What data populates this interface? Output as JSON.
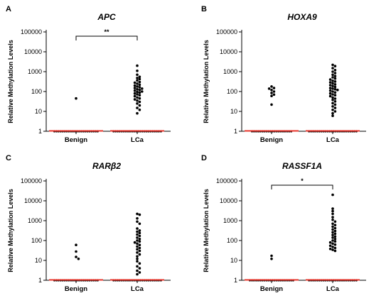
{
  "figure": {
    "ylabel": "Relative Methylation Levels"
  },
  "chart_data": [
    {
      "type": "scatter",
      "panel": "A",
      "title": "APC",
      "ylabel": "Relative Methylation Levels",
      "yscale": "log",
      "ylim": [
        1,
        100000
      ],
      "yticks": [
        "1",
        "10",
        "100",
        "1000",
        "10000",
        "100000"
      ],
      "categories": [
        "Benign",
        "LCa"
      ],
      "significance": "**",
      "bracket": [
        "Benign",
        "LCa"
      ],
      "median_color": "#e8332a",
      "groups": [
        {
          "name": "Benign",
          "values": [
            45
          ],
          "baseline_count": 22
        },
        {
          "name": "LCa",
          "values": [
            2000,
            1100,
            700,
            550,
            480,
            420,
            360,
            300,
            280,
            250,
            220,
            200,
            180,
            165,
            150,
            140,
            130,
            120,
            110,
            100,
            95,
            88,
            80,
            72,
            65,
            58,
            50,
            45,
            40,
            35,
            30,
            25,
            20,
            15,
            12,
            8
          ],
          "baseline_count": 24
        }
      ]
    },
    {
      "type": "scatter",
      "panel": "B",
      "title": "HOXA9",
      "ylabel": "Relative Methylation Levels",
      "yscale": "log",
      "ylim": [
        1,
        100000
      ],
      "yticks": [
        "1",
        "10",
        "100",
        "1000",
        "10000",
        "100000"
      ],
      "categories": [
        "Benign",
        "LCa"
      ],
      "median_color": "#e8332a",
      "groups": [
        {
          "name": "Benign",
          "values": [
            180,
            150,
            140,
            120,
            100,
            85,
            70,
            60,
            22
          ],
          "baseline_count": 20
        },
        {
          "name": "LCa",
          "values": [
            2200,
            1900,
            1500,
            1200,
            1000,
            850,
            700,
            600,
            520,
            450,
            400,
            350,
            320,
            290,
            260,
            230,
            210,
            190,
            170,
            150,
            140,
            130,
            120,
            110,
            100,
            90,
            80,
            72,
            65,
            58,
            50,
            44,
            38,
            32,
            26,
            22,
            18,
            15,
            12,
            10,
            8,
            6
          ],
          "baseline_count": 24
        }
      ]
    },
    {
      "type": "scatter",
      "panel": "C",
      "title": "RARβ2",
      "ylabel": "Relative Methylation Levels",
      "yscale": "log",
      "ylim": [
        1,
        100000
      ],
      "yticks": [
        "1",
        "10",
        "100",
        "1000",
        "10000",
        "100000"
      ],
      "categories": [
        "Benign",
        "LCa"
      ],
      "median_color": "#e8332a",
      "groups": [
        {
          "name": "Benign",
          "values": [
            60,
            28,
            15,
            12
          ],
          "baseline_count": 22
        },
        {
          "name": "LCa",
          "values": [
            2200,
            2000,
            1300,
            900,
            700,
            400,
            320,
            280,
            240,
            200,
            170,
            140,
            120,
            100,
            90,
            80,
            70,
            60,
            50,
            42,
            36,
            30,
            25,
            20,
            16,
            12,
            9,
            7,
            5,
            4,
            3,
            2.5,
            2
          ],
          "baseline_count": 24
        }
      ]
    },
    {
      "type": "scatter",
      "panel": "D",
      "title": "RASSF1A",
      "ylabel": "Relative Methylation Levels",
      "yscale": "log",
      "ylim": [
        1,
        100000
      ],
      "yticks": [
        "1",
        "10",
        "100",
        "1000",
        "10000",
        "100000"
      ],
      "categories": [
        "Benign",
        "LCa"
      ],
      "significance": "*",
      "bracket": [
        "Benign",
        "LCa"
      ],
      "median_color": "#e8332a",
      "groups": [
        {
          "name": "Benign",
          "values": [
            17,
            12
          ],
          "baseline_count": 22
        },
        {
          "name": "LCa",
          "values": [
            20000,
            4000,
            3000,
            2200,
            1500,
            1100,
            900,
            700,
            600,
            500,
            420,
            360,
            300,
            260,
            220,
            190,
            160,
            140,
            120,
            100,
            90,
            80,
            70,
            62,
            55,
            48,
            42,
            38,
            34,
            30
          ],
          "baseline_count": 24
        }
      ]
    }
  ]
}
